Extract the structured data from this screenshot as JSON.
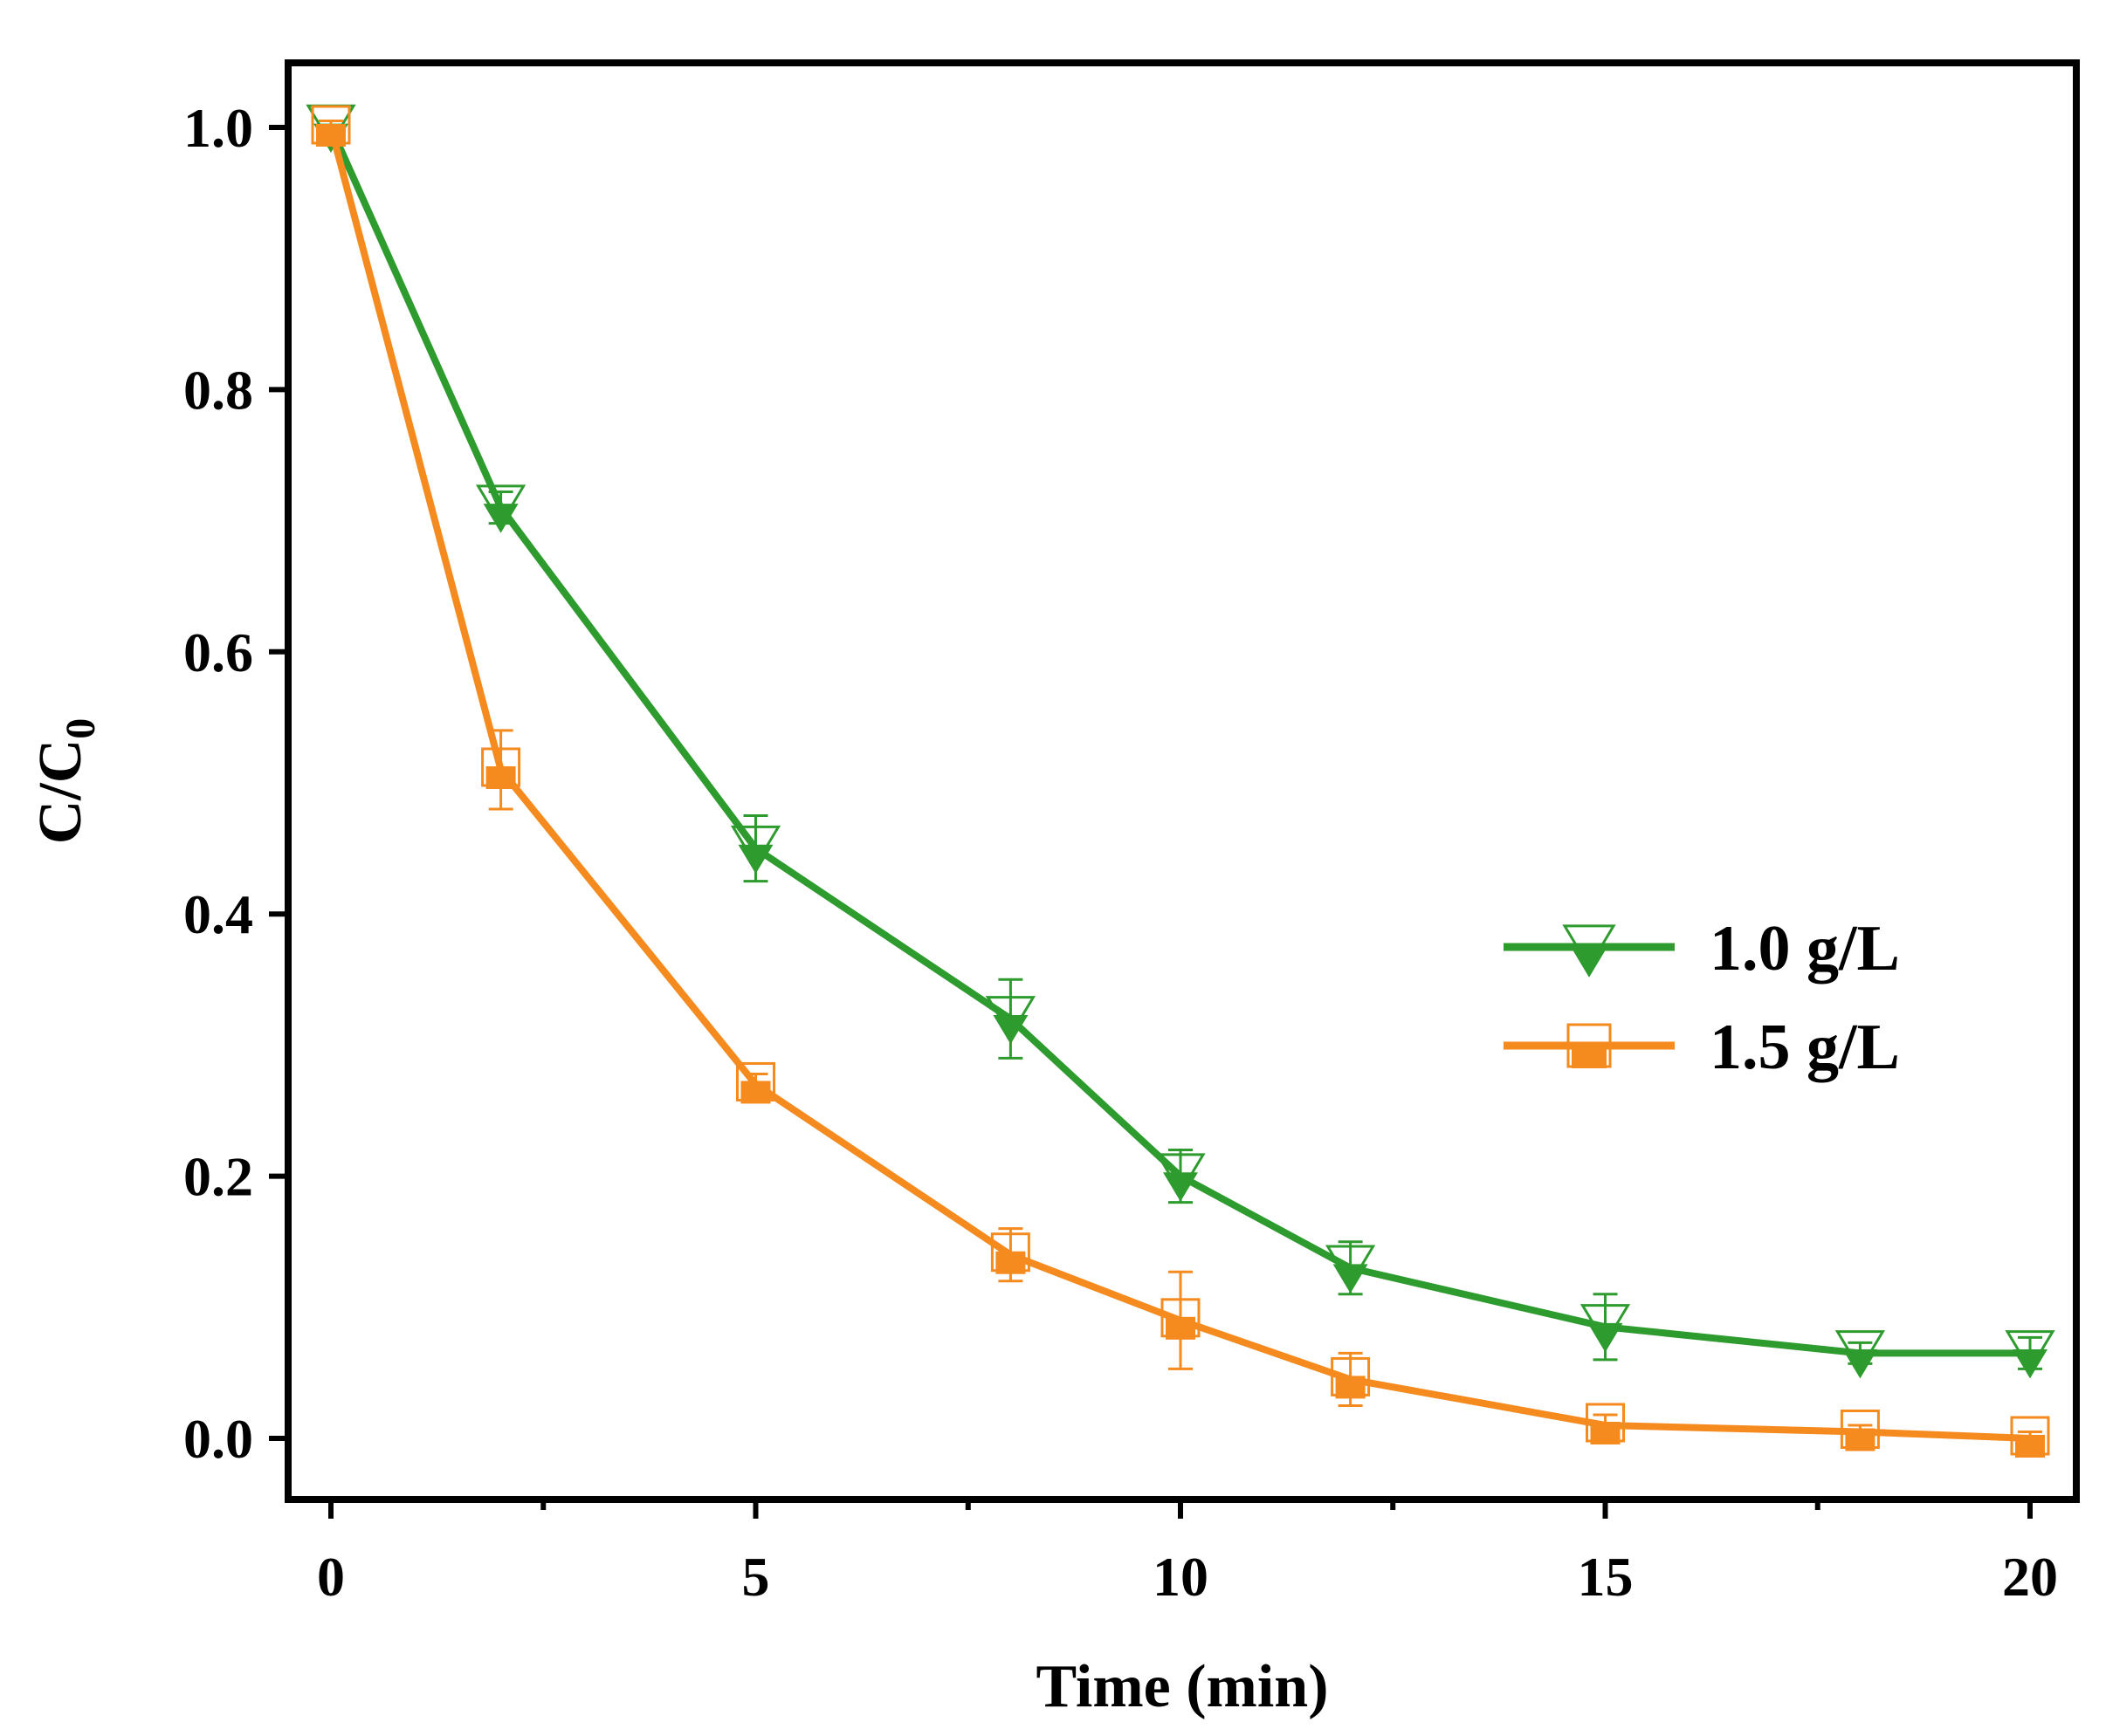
{
  "chart_data": {
    "type": "line",
    "title": "",
    "xlabel": "Time (min)",
    "ylabel_main": "C/C",
    "ylabel_sub": "0",
    "xlim": [
      -1,
      20.5
    ],
    "ylim": [
      -0.05,
      1.05
    ],
    "xticks": [
      0,
      5,
      10,
      15,
      20
    ],
    "xtick_labels": [
      "0",
      "5",
      "10",
      "15",
      "20"
    ],
    "x_minor_ticks": [
      2.5,
      7.5,
      12.5,
      17.5
    ],
    "yticks": [
      0.0,
      0.2,
      0.4,
      0.6,
      0.8,
      1.0
    ],
    "ytick_labels": [
      "0.0",
      "0.2",
      "0.4",
      "0.6",
      "0.8",
      "1.0"
    ],
    "grid": false,
    "legend_position": "right-middle",
    "series": [
      {
        "name": "1.0 g/L",
        "color": "#2e9b2e",
        "marker": "triangle-down",
        "x": [
          0,
          2,
          5,
          8,
          10,
          12,
          15,
          18,
          20
        ],
        "y": [
          1.0,
          0.71,
          0.45,
          0.32,
          0.2,
          0.13,
          0.085,
          0.065,
          0.065
        ],
        "error": [
          0.005,
          0.012,
          0.025,
          0.03,
          0.02,
          0.02,
          0.025,
          0.008,
          0.012
        ]
      },
      {
        "name": "1.5 g/L",
        "color": "#f58a1f",
        "marker": "square",
        "x": [
          0,
          2,
          5,
          8,
          10,
          12,
          15,
          18,
          20
        ],
        "y": [
          1.0,
          0.51,
          0.27,
          0.14,
          0.09,
          0.045,
          0.01,
          0.005,
          0.0
        ],
        "error": [
          0.005,
          0.03,
          0.008,
          0.02,
          0.037,
          0.02,
          0.008,
          0.005,
          0.005
        ]
      }
    ]
  }
}
